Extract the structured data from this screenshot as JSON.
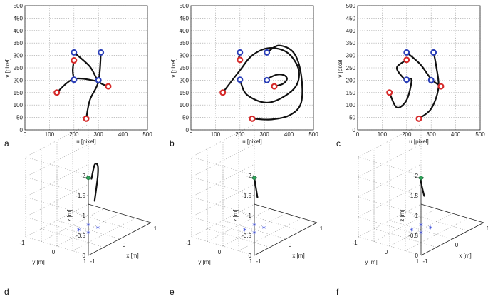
{
  "colors": {
    "start_marker": "#d62a2a",
    "end_marker": "#2b3fb8",
    "trajectory": "#111111",
    "camera_marker": "#2fa35a",
    "target_points": "#2336d6"
  },
  "chart_data": [
    {
      "panel": "a",
      "type": "line",
      "xlabel": "u [pixel]",
      "ylabel": "v [pixel]",
      "xlim": [
        0,
        500
      ],
      "ylim": [
        0,
        500
      ],
      "xticks": [
        "0",
        "100",
        "200",
        "300",
        "400",
        "500"
      ],
      "yticks": [
        "0",
        "50",
        "100",
        "150",
        "200",
        "250",
        "300",
        "350",
        "400",
        "450",
        "500"
      ],
      "y_reversed": true,
      "grid": true,
      "series": [
        {
          "values": [
            [
              130,
              150
            ],
            [
              200,
              205
            ],
            [
              300,
              195
            ]
          ]
        },
        {
          "values": [
            [
              250,
              45
            ],
            [
              265,
              120
            ],
            [
              300,
              195
            ],
            [
              310,
              312
            ]
          ]
        },
        {
          "values": [
            [
              340,
              175
            ],
            [
              300,
              195
            ],
            [
              265,
              255
            ],
            [
              200,
              312
            ]
          ]
        },
        {
          "values": [
            [
              200,
              280
            ],
            [
              195,
              240
            ],
            [
              200,
              202
            ]
          ]
        }
      ],
      "start_points": [
        [
          130,
          150
        ],
        [
          250,
          45
        ],
        [
          340,
          175
        ],
        [
          200,
          280
        ]
      ],
      "end_points": [
        [
          310,
          312
        ],
        [
          200,
          312
        ],
        [
          300,
          200
        ],
        [
          200,
          202
        ]
      ]
    },
    {
      "panel": "b",
      "type": "line",
      "xlabel": "u [pixel]",
      "ylabel": "v [pixel]",
      "xlim": [
        0,
        500
      ],
      "ylim": [
        0,
        500
      ],
      "xticks": [
        "0",
        "100",
        "200",
        "300",
        "400",
        "500"
      ],
      "yticks": [
        "0",
        "50",
        "100",
        "150",
        "200",
        "250",
        "300",
        "350",
        "400",
        "450",
        "500"
      ],
      "y_reversed": true,
      "grid": true,
      "series": [
        {
          "values": [
            [
              130,
              150
            ],
            [
              200,
              240
            ],
            [
              250,
              300
            ],
            [
              320,
              330
            ],
            [
              395,
              310
            ],
            [
              440,
              240
            ],
            [
              420,
              165
            ],
            [
              320,
              110
            ],
            [
              230,
              140
            ],
            [
              200,
              202
            ]
          ]
        },
        {
          "values": [
            [
              250,
              45
            ],
            [
              330,
              42
            ],
            [
              405,
              60
            ],
            [
              450,
              110
            ],
            [
              450,
              220
            ],
            [
              420,
              310
            ],
            [
              360,
              340
            ],
            [
              315,
              315
            ]
          ]
        },
        {
          "values": [
            [
              340,
              175
            ],
            [
              375,
              185
            ],
            [
              392,
              205
            ],
            [
              380,
              220
            ],
            [
              350,
              222
            ],
            [
              310,
              205
            ]
          ]
        },
        {
          "values": [
            [
              200,
              282
            ],
            [
              195,
              290
            ],
            [
              200,
              305
            ],
            [
              200,
              312
            ]
          ]
        }
      ],
      "start_points": [
        [
          130,
          150
        ],
        [
          250,
          45
        ],
        [
          340,
          175
        ],
        [
          200,
          282
        ]
      ],
      "end_points": [
        [
          310,
          312
        ],
        [
          200,
          312
        ],
        [
          310,
          200
        ],
        [
          200,
          202
        ]
      ]
    },
    {
      "panel": "c",
      "type": "line",
      "xlabel": "u [pixel]",
      "ylabel": "v [pixel]",
      "xlim": [
        0,
        500
      ],
      "ylim": [
        0,
        500
      ],
      "xticks": [
        "0",
        "100",
        "200",
        "300",
        "400",
        "500"
      ],
      "yticks": [
        "0",
        "50",
        "100",
        "150",
        "200",
        "250",
        "300",
        "350",
        "400",
        "450",
        "500"
      ],
      "y_reversed": true,
      "grid": true,
      "series": [
        {
          "values": [
            [
              130,
              150
            ],
            [
              160,
              90
            ],
            [
              200,
              120
            ],
            [
              220,
              200
            ],
            [
              200,
              202
            ]
          ]
        },
        {
          "values": [
            [
              250,
              45
            ],
            [
              300,
              85
            ],
            [
              330,
              170
            ],
            [
              320,
              260
            ],
            [
              310,
              312
            ]
          ]
        },
        {
          "values": [
            [
              340,
              175
            ],
            [
              300,
              205
            ],
            [
              255,
              265
            ],
            [
              200,
              312
            ]
          ]
        },
        {
          "values": [
            [
              200,
              282
            ],
            [
              160,
              250
            ],
            [
              190,
              205
            ],
            [
              200,
              202
            ]
          ]
        }
      ],
      "start_points": [
        [
          130,
          150
        ],
        [
          250,
          45
        ],
        [
          340,
          175
        ],
        [
          200,
          282
        ]
      ],
      "end_points": [
        [
          310,
          312
        ],
        [
          200,
          312
        ],
        [
          300,
          200
        ],
        [
          200,
          202
        ]
      ]
    },
    {
      "panel": "d",
      "type": "line3d",
      "xlabel": "x [m]",
      "ylabel": "y [m]",
      "zlabel": "z [m]",
      "xticks": [
        "-1",
        "0",
        "1"
      ],
      "yticks": [
        "1",
        "0",
        "-1"
      ],
      "zticks": [
        "-2",
        "-1.5",
        "-1",
        "-0.5",
        "0"
      ],
      "z_reversed": true,
      "grid": true,
      "trajectory": [
        [
          -0.2,
          0.4,
          -0.9
        ],
        [
          -0.3,
          0.6,
          -1.6
        ],
        [
          -0.5,
          0.8,
          -2.0
        ],
        [
          -0.2,
          0.4,
          -1.8
        ],
        [
          0.0,
          0.1,
          -1.3
        ]
      ],
      "camera_final": [
        0.0,
        0.0,
        -1.3
      ],
      "targets": "4 points near the origin at z = 0"
    },
    {
      "panel": "e",
      "type": "line3d",
      "xlabel": "x [m]",
      "ylabel": "y [m]",
      "zlabel": "z [m]",
      "xticks": [
        "-1",
        "0",
        "1"
      ],
      "yticks": [
        "1",
        "0",
        "-1"
      ],
      "zticks": [
        "-2",
        "-1.5",
        "-1",
        "-0.5",
        "0"
      ],
      "z_reversed": true,
      "grid": true,
      "trajectory": [
        [
          -0.1,
          0.2,
          -0.9
        ],
        [
          0.0,
          0.0,
          -1.3
        ]
      ],
      "camera_final": [
        0.0,
        0.0,
        -1.3
      ],
      "targets": "4 points near the origin at z = 0"
    },
    {
      "panel": "f",
      "type": "line3d",
      "xlabel": "x [m]",
      "ylabel": "y [m]",
      "zlabel": "z [m]",
      "xticks": [
        "-1",
        "0",
        "1"
      ],
      "yticks": [
        "1",
        "0",
        "-1"
      ],
      "zticks": [
        "-2",
        "-1.5",
        "-1",
        "-0.5",
        "0"
      ],
      "z_reversed": true,
      "grid": true,
      "trajectory": [
        [
          -0.2,
          0.3,
          -1.0
        ],
        [
          -0.1,
          0.1,
          -1.25
        ],
        [
          0.0,
          0.0,
          -1.3
        ]
      ],
      "camera_final": [
        0.0,
        0.0,
        -1.3
      ],
      "targets": "4 points near the origin at z = 0"
    }
  ]
}
